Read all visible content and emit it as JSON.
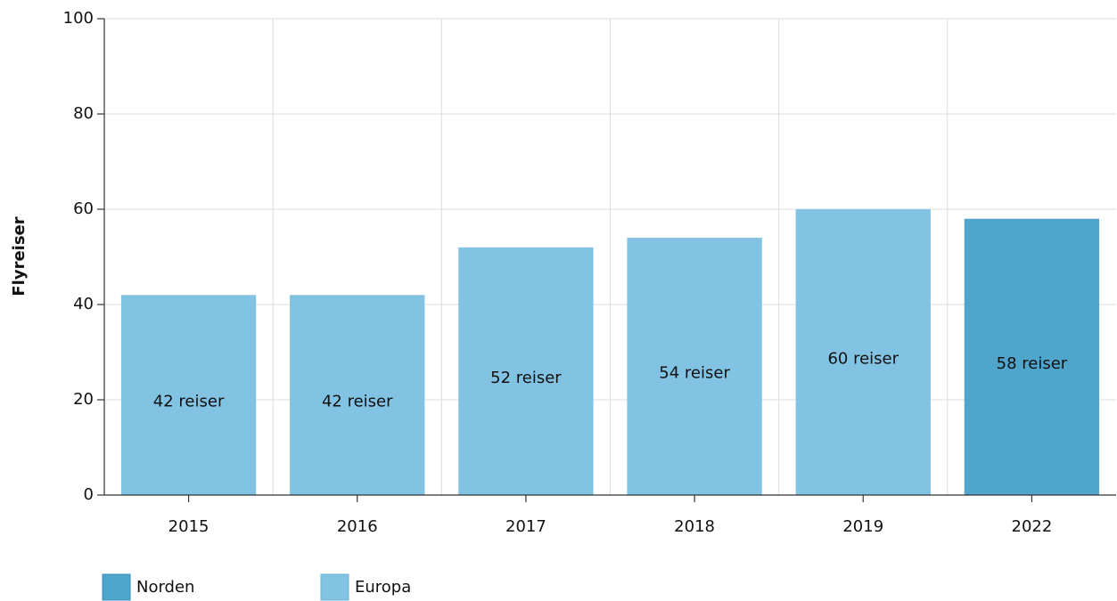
{
  "chart_data": {
    "type": "bar",
    "y_label": "Flyreiser",
    "categories": [
      "2015",
      "2016",
      "2017",
      "2018",
      "2019",
      "2022"
    ],
    "series": [
      {
        "name": "Norden",
        "color": "#4fa5cc",
        "values": [
          null,
          null,
          null,
          null,
          null,
          58
        ],
        "value_labels": [
          null,
          null,
          null,
          null,
          null,
          "58 reiser"
        ]
      },
      {
        "name": "Europa",
        "color": "#82c3e3",
        "values": [
          42,
          42,
          52,
          54,
          60,
          null
        ],
        "value_labels": [
          "42 reiser",
          "42 reiser",
          "52 reiser",
          "54 reiser",
          "60 reiser",
          null
        ]
      }
    ],
    "ylim": [
      0,
      100
    ],
    "yticks": [
      0,
      20,
      40,
      60,
      80,
      100
    ],
    "grid": true
  }
}
